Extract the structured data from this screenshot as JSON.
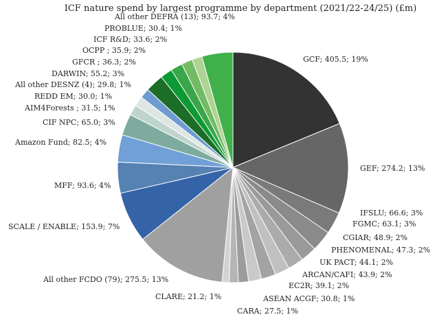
{
  "chart_data": {
    "type": "pie",
    "title": "ICF nature spend by largest programme by department (2021/22-24/25) (£m)",
    "start_angle_deg": 0,
    "direction": "clockwise",
    "slices": [
      {
        "name": "GCF",
        "value": 405.5,
        "percent": "19%",
        "label": "GCF; 405.5; 19%",
        "color": "#333333"
      },
      {
        "name": "GEF",
        "value": 274.2,
        "percent": "13%",
        "label": "GEF; 274.2; 13%",
        "color": "#666666"
      },
      {
        "name": "IFSLU",
        "value": 66.6,
        "percent": "3%",
        "label": "IFSLU; 66.6; 3%",
        "color": "#7a7a7a"
      },
      {
        "name": "FGMC",
        "value": 63.1,
        "percent": "3%",
        "label": "FGMC; 63.1; 3%",
        "color": "#8a8a8a"
      },
      {
        "name": "CGIAR",
        "value": 48.9,
        "percent": "2%",
        "label": "CGIAR; 48.9; 2%",
        "color": "#9a9a9a"
      },
      {
        "name": "PHENOMENAL",
        "value": 47.3,
        "percent": "2%",
        "label": "PHENOMENAL; 47.3; 2%",
        "color": "#ababab"
      },
      {
        "name": "UK PACT",
        "value": 44.1,
        "percent": "2%",
        "label": "UK PACT; 44.1; 2%",
        "color": "#c0c0c0"
      },
      {
        "name": "ARCAN/CAFI",
        "value": 43.9,
        "percent": "2%",
        "label": "ARCAN/CAFI; 43.9; 2%",
        "color": "#a3a3a3"
      },
      {
        "name": "EC2R",
        "value": 39.1,
        "percent": "2%",
        "label": "EC2R; 39.1; 2%",
        "color": "#c9c9c9"
      },
      {
        "name": "ASEAN ACGF",
        "value": 30.8,
        "percent": "1%",
        "label": "ASEAN ACGF; 30.8; 1%",
        "color": "#9c9c9c"
      },
      {
        "name": "CARA",
        "value": 27.5,
        "percent": "1%",
        "label": "CARA; 27.5; 1%",
        "color": "#b5b5b5"
      },
      {
        "name": "CLARE",
        "value": 21.2,
        "percent": "1%",
        "label": "CLARE; 21.2; 1%",
        "color": "#d2d2d2"
      },
      {
        "name": "All other FCDO (79)",
        "value": 275.5,
        "percent": "13%",
        "label": "All other FCDO (79); 275.5; 13%",
        "color": "#a0a0a0"
      },
      {
        "name": "SCALE / ENABLE",
        "value": 153.9,
        "percent": "7%",
        "label": "SCALE / ENABLE; 153.9; 7%",
        "color": "#3563a8"
      },
      {
        "name": "MFF",
        "value": 93.6,
        "percent": "4%",
        "label": "MFF; 93.6; 4%",
        "color": "#5681b3"
      },
      {
        "name": "Amazon Fund",
        "value": 82.5,
        "percent": "4%",
        "label": "Amazon Fund; 82.5; 4%",
        "color": "#70a0d6"
      },
      {
        "name": "CIF NPC",
        "value": 65.0,
        "percent": "3%",
        "label": "CIF NPC; 65.0; 3%",
        "color": "#7fab9f"
      },
      {
        "name": "AIM4Forests",
        "value": 31.5,
        "percent": "1%",
        "label": "AIM4Forests ; 31.5; 1%",
        "color": "#c0d4ce"
      },
      {
        "name": "REDD EM",
        "value": 30.0,
        "percent": "1%",
        "label": "REDD EM; 30.0; 1%",
        "color": "#dde6e3"
      },
      {
        "name": "All other DESNZ (4)",
        "value": 29.8,
        "percent": "1%",
        "label": "All other DESNZ (4); 29.8; 1%",
        "color": "#6e9bd2"
      },
      {
        "name": "DARWIN",
        "value": 55.2,
        "percent": "3%",
        "label": "DARWIN; 55.2; 3%",
        "color": "#1c6e27"
      },
      {
        "name": "GFCR",
        "value": 36.3,
        "percent": "2%",
        "label": "GFCR ; 36.3; 2%",
        "color": "#0b9a33"
      },
      {
        "name": "OCPP",
        "value": 35.9,
        "percent": "2%",
        "label": "OCPP ; 35.9; 2%",
        "color": "#3aa64a"
      },
      {
        "name": "ICF R&D",
        "value": 33.6,
        "percent": "2%",
        "label": "ICF R&D; 33.6; 2%",
        "color": "#72bb63"
      },
      {
        "name": "PROBLUE",
        "value": 30.4,
        "percent": "1%",
        "label": "PROBLUE; 30.4; 1%",
        "color": "#aed393"
      },
      {
        "name": "All other DEFRA (13)",
        "value": 93.7,
        "percent": "4%",
        "label": "All other DEFRA (13); 93.7; 4%",
        "color": "#3fb04a"
      }
    ]
  }
}
